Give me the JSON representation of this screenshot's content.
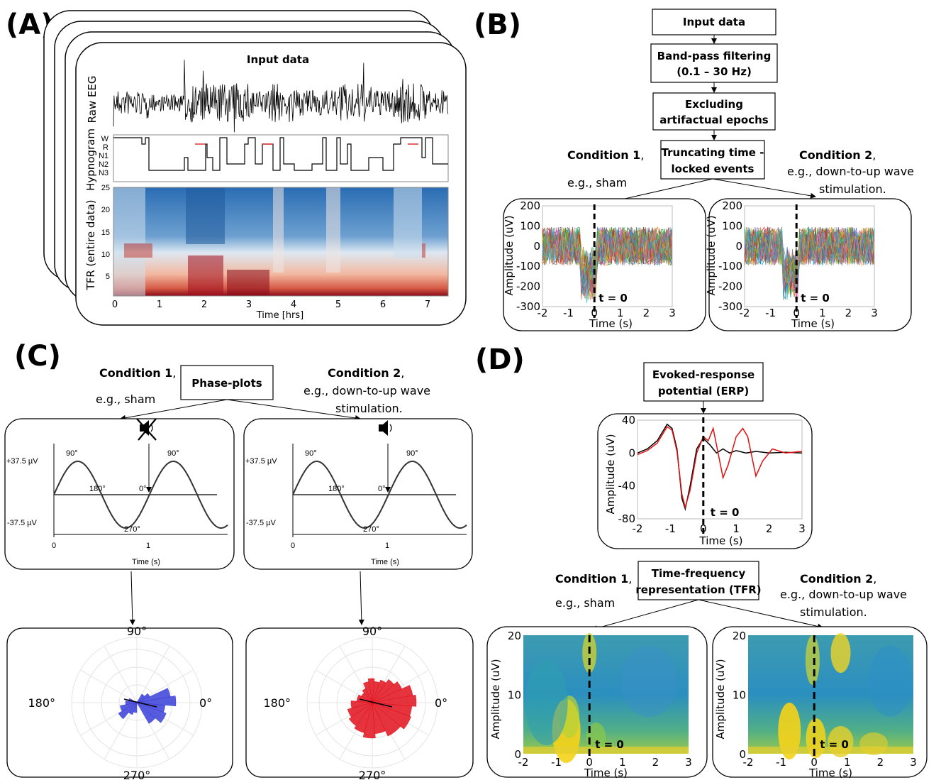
{
  "panels": {
    "A": {
      "label": "(A)",
      "title": "Input data",
      "ylabels": [
        "Raw EEG",
        "Hypnogram",
        "TFR (entire data)"
      ],
      "hypno_stages": [
        "W",
        "R",
        "N1",
        "N2",
        "N3"
      ],
      "tfr_yticks": [
        "25",
        "20",
        "15",
        "10",
        "5"
      ],
      "xticks": [
        "0",
        "1",
        "2",
        "3",
        "4",
        "5",
        "6",
        "7"
      ],
      "xlabel": "Time [hrs]"
    },
    "B": {
      "label": "(B)",
      "flow": [
        "Input data",
        "Band-pass filtering",
        "(0.1 – 30 Hz)",
        "Excluding",
        "artifactual epochs",
        "Truncating time -",
        "locked events"
      ],
      "cond1": {
        "title": "Condition 1",
        "sep": ",",
        "desc": "e.g., sham"
      },
      "cond2": {
        "title": "Condition 2",
        "sep": ",",
        "desc1": "e.g., down-to-up wave",
        "desc2": "stimulation."
      },
      "yticks": [
        "200",
        "100",
        "0",
        "-100",
        "-200",
        "-300"
      ],
      "xticks": [
        "-2",
        "-1",
        "0",
        "1",
        "2",
        "3"
      ],
      "ylabel": "Amplitude (uV)",
      "xlabel": "Time (s)",
      "t0": "t = 0"
    },
    "C": {
      "label": "(C)",
      "box": "Phase-plots",
      "cond1": {
        "title": "Condition 1",
        "sep": ",",
        "desc": "e.g., sham"
      },
      "cond2": {
        "title": "Condition 2",
        "sep": ",",
        "desc1": "e.g., down-to-up wave",
        "desc2": "stimulation."
      },
      "y_top": "+37.5 µV",
      "y_bot": "-37.5 µV",
      "angles": {
        "a90": "90°",
        "a180": "180°",
        "a0": "0°",
        "a270": "270°"
      },
      "xticks": [
        "0",
        "1"
      ],
      "xlabel": "Time (s)",
      "polar": {
        "top": "90°",
        "left": "180°",
        "right": "0°",
        "bottom": "270°"
      }
    },
    "D": {
      "label": "(D)",
      "erp_box1": "Evoked-response",
      "erp_box2": "potential (ERP)",
      "erp_yticks": [
        "40",
        "0",
        "-40",
        "-80"
      ],
      "erp_xticks": [
        "-2",
        "-1",
        "0",
        "1",
        "2",
        "3"
      ],
      "ylabel": "Amplitude (uV)",
      "xlabel": "Time (s)",
      "t0": "t = 0",
      "tfr_box1": "Time-frequency",
      "tfr_box2": "representation (TFR)",
      "cond1": {
        "title": "Condition 1",
        "sep": ",",
        "desc": "e.g., sham"
      },
      "cond2": {
        "title": "Condition 2",
        "sep": ",",
        "desc1": "e.g., down-to-up wave",
        "desc2": "stimulation."
      },
      "tfr_yticks": [
        "20",
        "10",
        "0"
      ],
      "tfr_xticks": [
        "-2",
        "-1",
        "0",
        "1",
        "2",
        "3"
      ]
    }
  },
  "colors": {
    "blue_rose": "#3a3ed8",
    "red_rose": "#e0101c",
    "erp_red": "#e01010",
    "tfr_blue": "#2a6db3",
    "tfr_red": "#b01018"
  }
}
